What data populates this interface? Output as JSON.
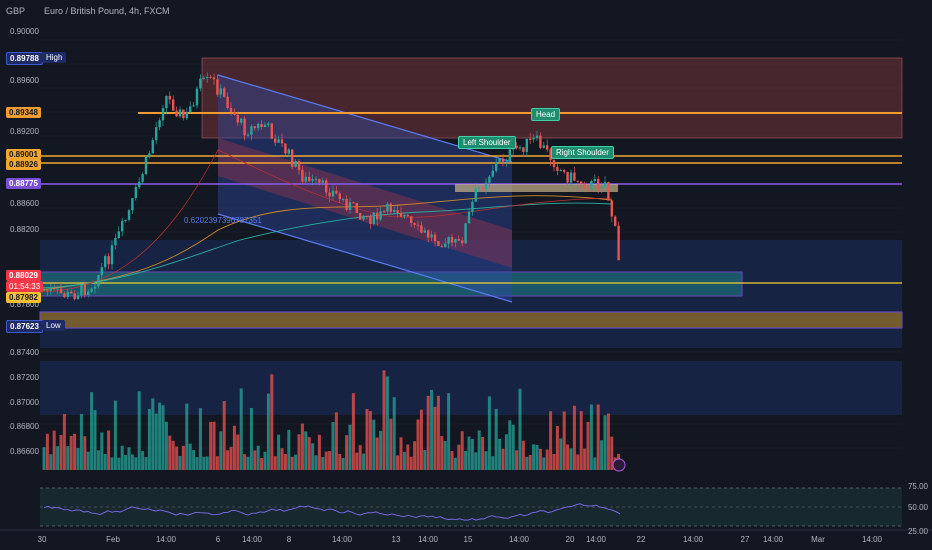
{
  "header": {
    "currency": "GBP",
    "title": "Euro / British Pound, 4h, FXCM"
  },
  "price_tags": {
    "high_value": "0.89788",
    "high_label": "High",
    "low_value": "0.87623",
    "low_label": "Low",
    "t1": "0.89348",
    "t2": "0.89001",
    "t3": "0.88926",
    "t4": "0.88775",
    "current": "0.88029",
    "countdown": "01:54:33",
    "t5": "0.87982"
  },
  "pattern": {
    "head": "Head",
    "left_shoulder": "Left Shoulder",
    "right_shoulder": "Right Shoulder"
  },
  "annotation": "0.6202397396787351",
  "chart_data": {
    "type": "candlestick",
    "y_axis_ticks": [
      "0.90000",
      "0.89600",
      "0.89200",
      "0.88600",
      "0.88200",
      "0.87800",
      "0.87400",
      "0.87200",
      "0.87000",
      "0.86800",
      "0.86600"
    ],
    "x_axis_ticks": [
      "30",
      "Feb",
      "14:00",
      "6",
      "14:00",
      "8",
      "14:00",
      "13",
      "14:00",
      "15",
      "14:00",
      "20",
      "14:00",
      "22",
      "14:00",
      "27",
      "14:00",
      "Mar",
      "14:00"
    ],
    "rsi_ticks": [
      "75.00",
      "50.00",
      "25.00"
    ],
    "levels": {
      "high": 0.89788,
      "low": 0.87623,
      "resistance_1": 0.89348,
      "resistance_2": 0.89001,
      "resistance_3": 0.88926,
      "neckline": 0.88775,
      "current": 0.88029,
      "support": 0.87982
    }
  }
}
